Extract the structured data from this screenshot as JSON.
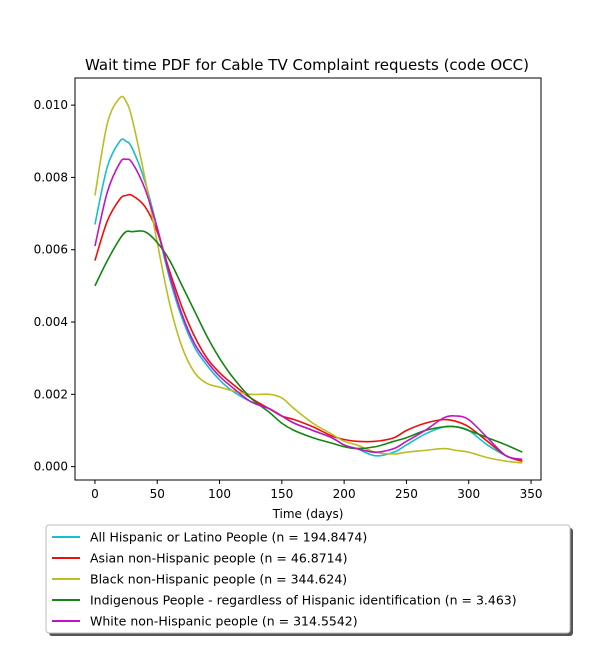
{
  "chart_data": {
    "type": "line",
    "title": "Wait time PDF for Cable TV Complaint  requests (code OCC)",
    "xlabel": "Time (days)",
    "ylabel": "",
    "xlim": [
      -16,
      358
    ],
    "ylim": [
      -0.00037,
      0.01075
    ],
    "x_ticks": [
      0,
      50,
      100,
      150,
      200,
      250,
      300,
      350
    ],
    "y_ticks": [
      0.0,
      0.002,
      0.004,
      0.006,
      0.008,
      0.01
    ],
    "y_tick_labels": [
      "0.000",
      "0.002",
      "0.004",
      "0.006",
      "0.008",
      "0.010"
    ],
    "grid": false,
    "legend_position": "below",
    "x": [
      0,
      10,
      20,
      25,
      30,
      40,
      50,
      60,
      70,
      80,
      90,
      100,
      110,
      125,
      140,
      150,
      160,
      175,
      190,
      200,
      210,
      225,
      240,
      250,
      265,
      280,
      290,
      300,
      315,
      330,
      343
    ],
    "series": [
      {
        "name": "All Hispanic or Latino People (n = 194.8474)",
        "color": "#17becf",
        "values": [
          0.0067,
          0.0083,
          0.009,
          0.009,
          0.0088,
          0.0079,
          0.0066,
          0.0052,
          0.0041,
          0.0033,
          0.0028,
          0.0024,
          0.0021,
          0.0018,
          0.0016,
          0.0014,
          0.0012,
          0.001,
          0.0008,
          0.0006,
          0.0005,
          0.0003,
          0.0004,
          0.0006,
          0.0009,
          0.0011,
          0.0011,
          0.001,
          0.0006,
          0.0003,
          0.00015
        ]
      },
      {
        "name": "Asian non-Hispanic people (n = 46.8714)",
        "color": "#e8120c",
        "values": [
          0.0057,
          0.0068,
          0.0074,
          0.0075,
          0.0075,
          0.0072,
          0.0065,
          0.0054,
          0.0044,
          0.0036,
          0.003,
          0.0026,
          0.0023,
          0.0019,
          0.0016,
          0.0014,
          0.0013,
          0.0011,
          0.00085,
          0.00075,
          0.0007,
          0.0007,
          0.0008,
          0.001,
          0.0012,
          0.0013,
          0.00125,
          0.0011,
          0.0007,
          0.0003,
          0.00015
        ]
      },
      {
        "name": "Black non-Hispanic people (n = 344.624)",
        "color": "#bcbd22",
        "values": [
          0.0075,
          0.0095,
          0.0102,
          0.0101,
          0.0096,
          0.008,
          0.0062,
          0.0045,
          0.0033,
          0.0026,
          0.0023,
          0.0022,
          0.0021,
          0.002,
          0.002,
          0.0019,
          0.0016,
          0.0012,
          0.0009,
          0.0007,
          0.0006,
          0.0004,
          0.00035,
          0.0004,
          0.00045,
          0.0005,
          0.00045,
          0.0004,
          0.00025,
          0.00015,
          0.0001
        ]
      },
      {
        "name": "Indigenous People - regardless of Hispanic identification (n = 3.463)",
        "color": "#138510",
        "values": [
          0.005,
          0.0057,
          0.0063,
          0.0065,
          0.0065,
          0.0065,
          0.0062,
          0.0057,
          0.005,
          0.0043,
          0.0036,
          0.003,
          0.0025,
          0.0019,
          0.0015,
          0.0012,
          0.001,
          0.0008,
          0.00065,
          0.00055,
          0.0005,
          0.00055,
          0.0007,
          0.0008,
          0.001,
          0.0011,
          0.0011,
          0.001,
          0.0008,
          0.0006,
          0.0004
        ]
      },
      {
        "name": "White non-Hispanic people (n = 314.5542)",
        "color": "#c214c2",
        "values": [
          0.0061,
          0.0076,
          0.0084,
          0.0085,
          0.0084,
          0.0077,
          0.0066,
          0.0053,
          0.0042,
          0.0034,
          0.0029,
          0.0025,
          0.0022,
          0.0018,
          0.0016,
          0.0014,
          0.0012,
          0.001,
          0.0008,
          0.0006,
          0.0005,
          0.0004,
          0.0005,
          0.0007,
          0.001,
          0.00135,
          0.0014,
          0.0013,
          0.0008,
          0.0003,
          0.0002
        ]
      }
    ]
  }
}
